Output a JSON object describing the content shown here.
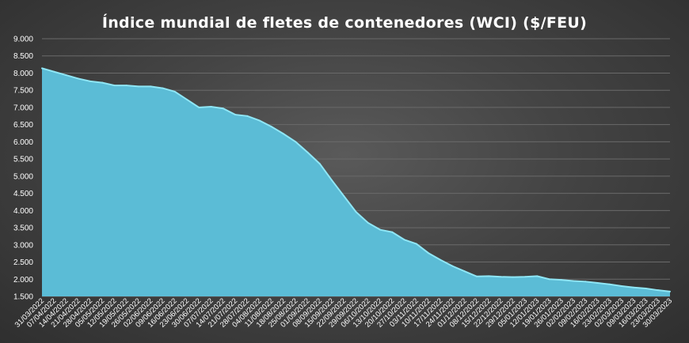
{
  "chart_data": {
    "type": "area",
    "title": "Índice mundial de fletes de contenedores (WCI) ($/FEU)",
    "xlabel": "",
    "ylabel": "",
    "ylim": [
      1500,
      9000
    ],
    "yticks": [
      1500,
      2000,
      2500,
      3000,
      3500,
      4000,
      4500,
      5000,
      5500,
      6000,
      6500,
      7000,
      7500,
      8000,
      8500,
      9000
    ],
    "ytick_labels": [
      "1.500",
      "2.000",
      "2.500",
      "3.000",
      "3.500",
      "4.000",
      "4.500",
      "5.000",
      "5.500",
      "6.000",
      "6.500",
      "7.000",
      "7.500",
      "8.000",
      "8.500",
      "9.000"
    ],
    "grid": true,
    "fill_color": "#5bbcd6",
    "line_color": "#8fe6f5",
    "categories": [
      "31/03/2022",
      "07/04/2022",
      "14/04/2022",
      "21/04/2022",
      "28/04/2022",
      "05/05/2022",
      "12/05/2022",
      "19/05/2022",
      "26/05/2022",
      "02/06/2022",
      "09/06/2022",
      "16/06/2022",
      "23/06/2022",
      "30/06/2022",
      "07/07/2022",
      "14/07/2022",
      "21/07/2022",
      "28/07/2022",
      "04/08/2022",
      "11/08/2022",
      "18/08/2022",
      "25/08/2022",
      "01/09/2022",
      "08/09/2022",
      "15/09/2022",
      "22/09/2022",
      "29/09/2022",
      "06/10/2022",
      "13/10/2022",
      "20/10/2022",
      "27/10/2022",
      "03/11/2022",
      "10/11/2022",
      "17/11/2022",
      "24/11/2022",
      "01/12/2022",
      "08/12/2022",
      "15/12/2022",
      "22/12/2022",
      "29/12/2022",
      "05/01/2023",
      "12/01/2023",
      "19/01/2023",
      "26/01/2023",
      "02/02/2023",
      "09/02/2023",
      "16/02/2023",
      "23/02/2023",
      "02/03/2023",
      "09/03/2023",
      "16/03/2023",
      "23/03/2023",
      "30/03/2023"
    ],
    "values": [
      8140,
      8040,
      7940,
      7840,
      7760,
      7720,
      7640,
      7640,
      7610,
      7610,
      7560,
      7460,
      7230,
      7000,
      7020,
      6970,
      6790,
      6750,
      6620,
      6440,
      6230,
      6000,
      5690,
      5360,
      4880,
      4420,
      3960,
      3640,
      3440,
      3370,
      3150,
      3030,
      2760,
      2560,
      2380,
      2230,
      2080,
      2090,
      2070,
      2060,
      2070,
      2090,
      2000,
      1980,
      1950,
      1930,
      1890,
      1850,
      1800,
      1760,
      1730,
      1680,
      1640
    ]
  }
}
